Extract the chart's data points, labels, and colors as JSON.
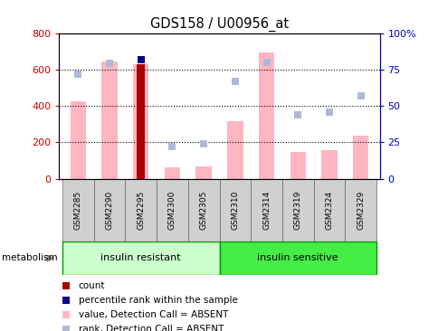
{
  "title": "GDS158 / U00956_at",
  "samples": [
    "GSM2285",
    "GSM2290",
    "GSM2295",
    "GSM2300",
    "GSM2305",
    "GSM2310",
    "GSM2314",
    "GSM2319",
    "GSM2324",
    "GSM2329"
  ],
  "value_absent": [
    425,
    645,
    630,
    65,
    70,
    315,
    695,
    145,
    155,
    235
  ],
  "rank_absent": [
    72,
    79,
    null,
    22,
    24,
    67,
    80,
    44,
    46,
    57
  ],
  "count_bar_idx": 2,
  "count_bar_val": 630,
  "percentile_idx": 2,
  "percentile_val": 82,
  "ylim_left": [
    0,
    800
  ],
  "ylim_right": [
    0,
    100
  ],
  "yticks_left": [
    0,
    200,
    400,
    600,
    800
  ],
  "yticks_right": [
    0,
    25,
    50,
    75,
    100
  ],
  "yticklabels_right": [
    "0",
    "25",
    "50",
    "75",
    "100%"
  ],
  "resistant_count": 5,
  "sensitive_count": 5,
  "colors": {
    "count": "#aa0000",
    "percentile": "#000088",
    "value_absent": "#ffb6c1",
    "rank_absent": "#b0b8d8",
    "group_resistant_fill": "#ccffcc",
    "group_sensitive_fill": "#44ee44",
    "group_border": "#009900",
    "tick_bg": "#d0d0d0",
    "tick_border": "#666666",
    "left_axis": "#cc0000",
    "right_axis": "#0000cc"
  },
  "legend_items": [
    {
      "color": "#aa0000",
      "label": "count"
    },
    {
      "color": "#000088",
      "label": "percentile rank within the sample"
    },
    {
      "color": "#ffb6c1",
      "label": "value, Detection Call = ABSENT"
    },
    {
      "color": "#b0b8d8",
      "label": "rank, Detection Call = ABSENT"
    }
  ]
}
